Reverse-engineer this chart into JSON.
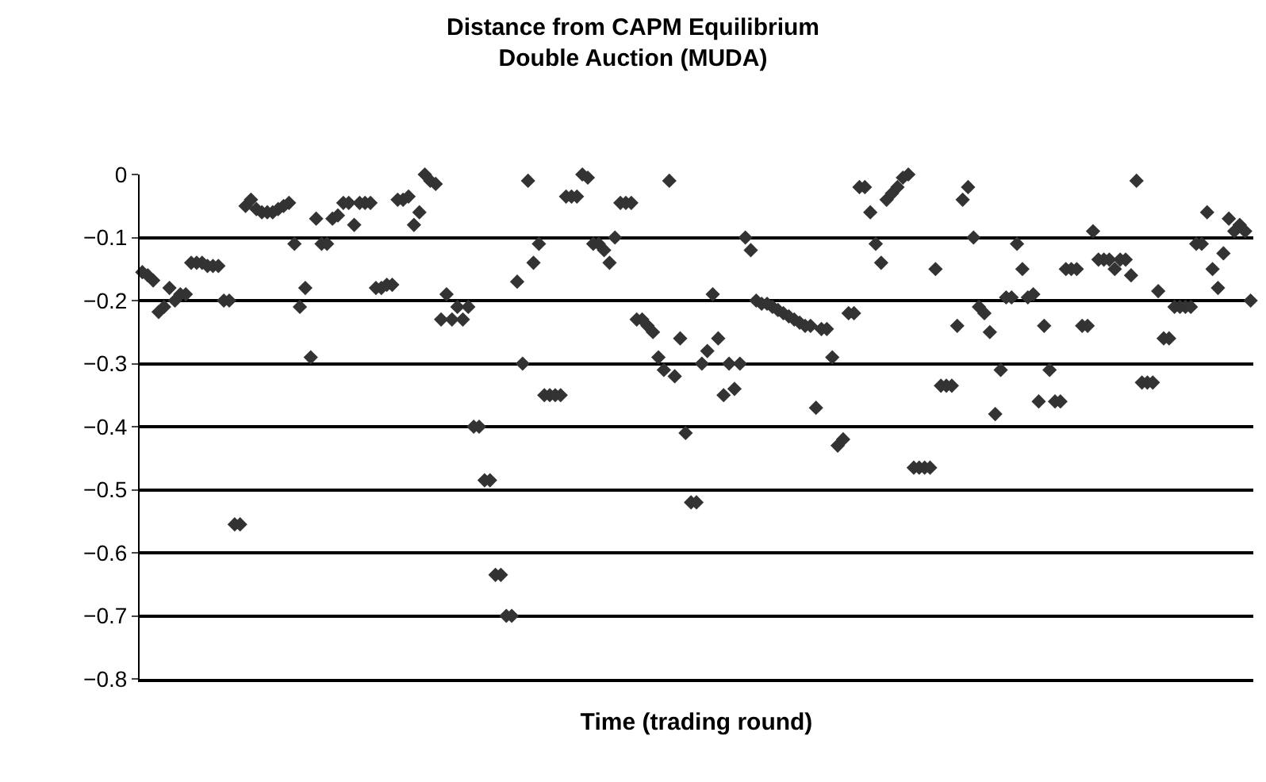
{
  "chart_data": {
    "type": "scatter",
    "title": "Distance from CAPM Equilibrium\nDouble Auction (MUDA)",
    "xlabel": "Time (trading round)",
    "categories": [
      null,
      null,
      null,
      null,
      null,
      null,
      null,
      null,
      null,
      null,
      null,
      null,
      null,
      null,
      null,
      null,
      null,
      null,
      null,
      null,
      null,
      null,
      null,
      null,
      null,
      null,
      null,
      null,
      null,
      null,
      null,
      null,
      null,
      null,
      null,
      null,
      null,
      null,
      null,
      null,
      null,
      null,
      null,
      null,
      null,
      null,
      null,
      null,
      null,
      null,
      null,
      null,
      null,
      null,
      null,
      null,
      null,
      null,
      null,
      null,
      null,
      null,
      null,
      null,
      null,
      null,
      null,
      null,
      null,
      null,
      null,
      null,
      null,
      null,
      null,
      null,
      null,
      null,
      null,
      null,
      null,
      null,
      null,
      null,
      null,
      null,
      null,
      null,
      null,
      null,
      null,
      null,
      null,
      null,
      null,
      null,
      null,
      null,
      null,
      null,
      null,
      null,
      null,
      null,
      null,
      null,
      null,
      null,
      null,
      null,
      null,
      null,
      null,
      null,
      null,
      null,
      null,
      null,
      null,
      null,
      null,
      null,
      null,
      null,
      null,
      null,
      null,
      null,
      null,
      null,
      null,
      null,
      null,
      null,
      null,
      null,
      null,
      null,
      null,
      null,
      null,
      null,
      null,
      null,
      null,
      null,
      null,
      null,
      null,
      null,
      null,
      null,
      null,
      null,
      null,
      null,
      null,
      null,
      null,
      null,
      null,
      null,
      null,
      null,
      null,
      null,
      null,
      null,
      null,
      null,
      null,
      null,
      null,
      null,
      null,
      null,
      null,
      null,
      null,
      null,
      null,
      null,
      null,
      null,
      null,
      null,
      null,
      null,
      null,
      null,
      null,
      null,
      null,
      null,
      null,
      null,
      null,
      null,
      null,
      null,
      null,
      null,
      null,
      null,
      null
    ],
    "series": [
      {
        "color": "#333333",
        "values": [
          -0.155,
          -0.16,
          -0.168,
          -0.218,
          -0.21,
          -0.18,
          -0.2,
          -0.19,
          -0.19,
          -0.14,
          -0.14,
          -0.14,
          -0.145,
          -0.145,
          -0.145,
          -0.2,
          -0.2,
          -0.555,
          -0.555,
          -0.05,
          -0.04,
          -0.055,
          -0.06,
          -0.06,
          -0.06,
          -0.055,
          -0.05,
          -0.045,
          -0.11,
          -0.21,
          -0.18,
          -0.29,
          -0.07,
          -0.11,
          -0.11,
          -0.07,
          -0.065,
          -0.045,
          -0.045,
          -0.08,
          -0.045,
          -0.045,
          -0.045,
          -0.18,
          -0.18,
          -0.175,
          -0.175,
          -0.04,
          -0.04,
          -0.035,
          -0.08,
          -0.06,
          0,
          -0.01,
          -0.015,
          -0.23,
          -0.19,
          -0.23,
          -0.21,
          -0.23,
          -0.21,
          -0.4,
          -0.4,
          -0.485,
          -0.485,
          -0.635,
          -0.635,
          -0.7,
          -0.7,
          -0.17,
          -0.3,
          -0.01,
          -0.14,
          -0.11,
          -0.35,
          -0.35,
          -0.35,
          -0.35,
          -0.035,
          -0.035,
          -0.035,
          0,
          -0.005,
          -0.11,
          -0.11,
          -0.12,
          -0.14,
          -0.1,
          -0.045,
          -0.045,
          -0.045,
          -0.23,
          -0.23,
          -0.24,
          -0.25,
          -0.29,
          -0.31,
          -0.01,
          -0.32,
          -0.26,
          -0.41,
          -0.52,
          -0.52,
          -0.3,
          -0.28,
          -0.19,
          -0.26,
          -0.35,
          -0.3,
          -0.34,
          -0.3,
          -0.1,
          -0.12,
          -0.2,
          -0.205,
          -0.205,
          -0.21,
          -0.215,
          -0.22,
          -0.225,
          -0.23,
          -0.235,
          -0.24,
          -0.24,
          -0.37,
          -0.245,
          -0.245,
          -0.29,
          -0.43,
          -0.42,
          -0.22,
          -0.22,
          -0.02,
          -0.02,
          -0.06,
          -0.11,
          -0.14,
          -0.04,
          -0.03,
          -0.02,
          -0.005,
          0,
          -0.465,
          -0.465,
          -0.465,
          -0.465,
          -0.15,
          -0.335,
          -0.335,
          -0.335,
          -0.24,
          -0.04,
          -0.02,
          -0.1,
          -0.21,
          -0.22,
          -0.25,
          -0.38,
          -0.31,
          -0.195,
          -0.195,
          -0.11,
          -0.15,
          -0.195,
          -0.19,
          -0.36,
          -0.24,
          -0.31,
          -0.36,
          -0.36,
          -0.15,
          -0.15,
          -0.15,
          -0.24,
          -0.24,
          -0.09,
          -0.135,
          -0.135,
          -0.135,
          -0.15,
          -0.135,
          -0.135,
          -0.16,
          -0.01,
          -0.33,
          -0.33,
          -0.33,
          -0.185,
          -0.26,
          -0.26,
          -0.21,
          -0.21,
          -0.21,
          -0.21,
          -0.11,
          -0.11,
          -0.06,
          -0.15,
          -0.18,
          -0.125,
          -0.07,
          -0.09,
          -0.08,
          -0.09,
          -0.2
        ]
      }
    ],
    "ylim": [
      -0.8,
      0
    ],
    "yticks": [
      0,
      {
        "value": -0.1,
        "label": "−0.1"
      },
      {
        "value": -0.2,
        "label": "−0.2"
      },
      {
        "value": -0.3,
        "label": "−0.3"
      },
      {
        "value": -0.4,
        "label": "−0.4"
      },
      {
        "value": -0.5,
        "label": "−0.5"
      },
      {
        "value": -0.6,
        "label": "−0.6"
      },
      {
        "value": -0.7,
        "label": "−0.7"
      },
      {
        "value": -0.8,
        "label": "−0.8"
      }
    ],
    "grid": "y",
    "marker": "diamond"
  }
}
